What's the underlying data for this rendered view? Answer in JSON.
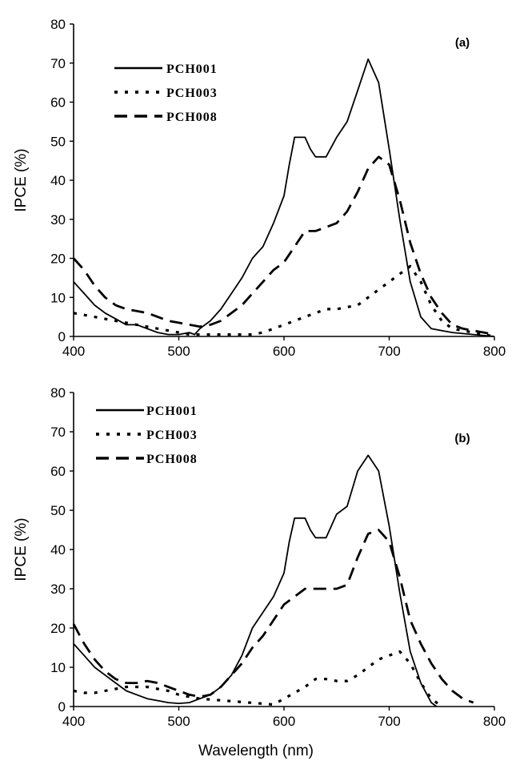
{
  "xlabel": "Wavelength (nm)",
  "chart_data": [
    {
      "type": "line",
      "panel_label": "(a)",
      "xlabel": "Wavelength (nm)",
      "ylabel": "IPCE (%)",
      "xlim": [
        400,
        800
      ],
      "ylim": [
        0,
        80
      ],
      "xticks": [
        400,
        500,
        600,
        700,
        800
      ],
      "yticks": [
        0,
        10,
        20,
        30,
        40,
        50,
        60,
        70,
        80
      ],
      "legend_position": "top-left",
      "series": [
        {
          "name": "PCH001",
          "style": "solid",
          "x": [
            400,
            410,
            420,
            430,
            440,
            450,
            460,
            470,
            480,
            490,
            500,
            510,
            515,
            520,
            530,
            540,
            550,
            560,
            570,
            580,
            590,
            600,
            605,
            610,
            620,
            625,
            630,
            640,
            650,
            660,
            670,
            680,
            690,
            700,
            710,
            720,
            730,
            740,
            750,
            760,
            780,
            800
          ],
          "y": [
            14,
            11,
            8,
            6,
            4.5,
            3,
            3,
            2,
            1,
            0.5,
            0.5,
            1,
            0.5,
            2,
            4,
            7,
            11,
            15,
            20,
            23,
            29,
            36,
            44,
            51,
            51,
            48,
            46,
            46,
            51,
            55,
            63,
            71,
            65,
            48,
            30,
            14,
            5,
            2,
            1.5,
            1,
            0.5,
            0
          ]
        },
        {
          "name": "PCH003",
          "style": "dotted",
          "x": [
            400,
            410,
            420,
            430,
            440,
            450,
            460,
            470,
            480,
            490,
            500,
            510,
            520,
            530,
            540,
            550,
            560,
            570,
            580,
            590,
            600,
            610,
            620,
            630,
            640,
            650,
            660,
            670,
            680,
            690,
            700,
            710,
            720,
            730,
            740,
            750,
            760,
            770,
            780,
            790,
            800
          ],
          "y": [
            6,
            5.5,
            5,
            4.5,
            4,
            3.5,
            3,
            2.5,
            2,
            1.5,
            1,
            0.5,
            0.5,
            0.5,
            0.5,
            0.5,
            0.5,
            0.5,
            1,
            2,
            3,
            4,
            5,
            6,
            7,
            7,
            7.5,
            8,
            10,
            12,
            14,
            16,
            18,
            14,
            8,
            4,
            2,
            1.5,
            1,
            0.5,
            0
          ]
        },
        {
          "name": "PCH008",
          "style": "dashed",
          "x": [
            400,
            410,
            420,
            430,
            440,
            450,
            460,
            470,
            480,
            490,
            500,
            510,
            520,
            530,
            540,
            550,
            560,
            570,
            580,
            590,
            600,
            610,
            620,
            630,
            640,
            650,
            660,
            670,
            680,
            690,
            700,
            710,
            720,
            730,
            740,
            750,
            760,
            770,
            780,
            790,
            800
          ],
          "y": [
            20,
            17,
            13,
            10,
            8,
            7,
            6.5,
            6,
            5,
            4,
            3.5,
            3,
            2.5,
            3,
            4,
            6,
            8,
            11,
            14,
            17,
            19,
            23,
            27,
            27,
            28,
            29,
            32,
            37,
            43,
            46,
            44,
            35,
            24,
            16,
            10,
            6,
            3,
            2,
            1.5,
            1,
            0.5
          ]
        }
      ]
    },
    {
      "type": "line",
      "panel_label": "(b)",
      "xlabel": "Wavelength (nm)",
      "ylabel": "IPCE (%)",
      "xlim": [
        400,
        800
      ],
      "ylim": [
        0,
        80
      ],
      "xticks": [
        400,
        500,
        600,
        700,
        800
      ],
      "yticks": [
        0,
        10,
        20,
        30,
        40,
        50,
        60,
        70,
        80
      ],
      "legend_position": "top-left",
      "series": [
        {
          "name": "PCH001",
          "style": "solid",
          "x": [
            400,
            410,
            420,
            430,
            440,
            450,
            460,
            470,
            480,
            490,
            500,
            510,
            520,
            530,
            540,
            550,
            560,
            570,
            580,
            590,
            600,
            605,
            610,
            620,
            625,
            630,
            640,
            650,
            660,
            670,
            680,
            690,
            700,
            710,
            720,
            730,
            740,
            745
          ],
          "y": [
            16,
            13,
            10,
            8,
            6,
            4,
            3,
            2,
            1.5,
            1,
            0.8,
            1,
            2,
            3,
            5,
            8,
            13,
            20,
            24,
            28,
            34,
            42,
            48,
            48,
            45,
            43,
            43,
            49,
            51,
            60,
            64,
            60,
            46,
            29,
            14,
            6,
            1,
            0
          ]
        },
        {
          "name": "PCH003",
          "style": "dotted",
          "x": [
            400,
            410,
            420,
            430,
            440,
            450,
            460,
            470,
            480,
            490,
            500,
            510,
            520,
            590,
            600,
            610,
            620,
            630,
            640,
            650,
            660,
            670,
            680,
            690,
            700,
            710,
            720,
            730,
            740,
            750
          ],
          "y": [
            4,
            3.5,
            3.5,
            4,
            4.5,
            5,
            5,
            5,
            4.5,
            4,
            3,
            2.5,
            2,
            0.5,
            2,
            3.5,
            5,
            7,
            7,
            6.5,
            6.5,
            8,
            10,
            12,
            13,
            14,
            11,
            6,
            2,
            0
          ]
        },
        {
          "name": "PCH008",
          "style": "dashed",
          "x": [
            400,
            410,
            420,
            430,
            440,
            450,
            460,
            470,
            480,
            490,
            500,
            510,
            520,
            530,
            540,
            550,
            560,
            570,
            580,
            590,
            600,
            610,
            620,
            630,
            640,
            650,
            660,
            670,
            680,
            690,
            700,
            710,
            720,
            730,
            740,
            750,
            760,
            770,
            780
          ],
          "y": [
            21,
            16,
            12,
            9,
            7,
            6,
            6,
            6.5,
            6,
            5,
            4,
            3,
            2.5,
            3,
            5,
            8,
            11,
            15,
            18,
            22,
            26,
            28,
            30,
            30,
            30,
            30,
            31,
            38,
            44,
            45,
            42,
            33,
            22,
            16,
            11,
            7,
            4,
            2,
            1
          ]
        }
      ]
    }
  ]
}
